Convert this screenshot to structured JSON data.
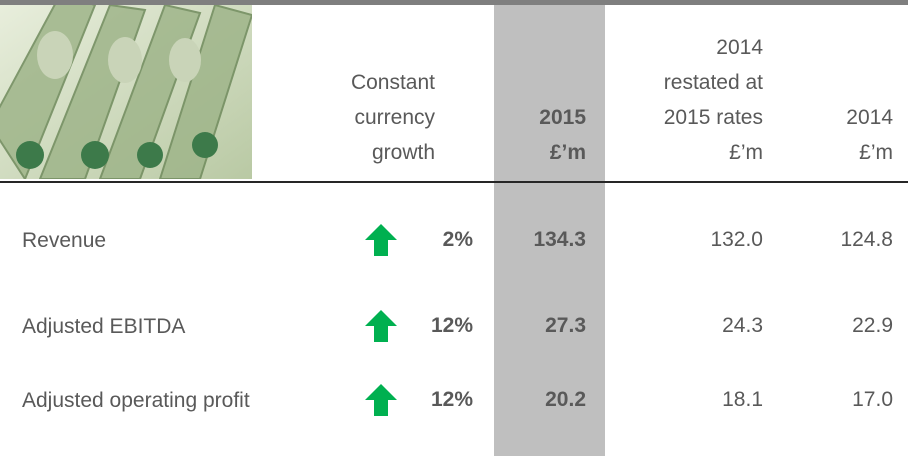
{
  "header": {
    "columns": [
      {
        "lines": [
          "Constant",
          "currency",
          "growth"
        ]
      },
      {
        "lines": [
          "2015",
          "£’m"
        ]
      },
      {
        "lines": [
          "2014",
          "restated at",
          "2015 rates",
          "£’m"
        ]
      },
      {
        "lines": [
          "2014",
          "£’m"
        ]
      }
    ]
  },
  "table": {
    "rows": [
      [
        "Revenue",
        "2%",
        "134.3",
        "132.0",
        "124.8"
      ],
      [
        "Adjusted EBITDA",
        "12%",
        "27.3",
        "24.3",
        "22.9"
      ],
      [
        "Adjusted operating profit",
        "12%",
        "20.2",
        "18.1",
        "17.0"
      ]
    ]
  }
}
